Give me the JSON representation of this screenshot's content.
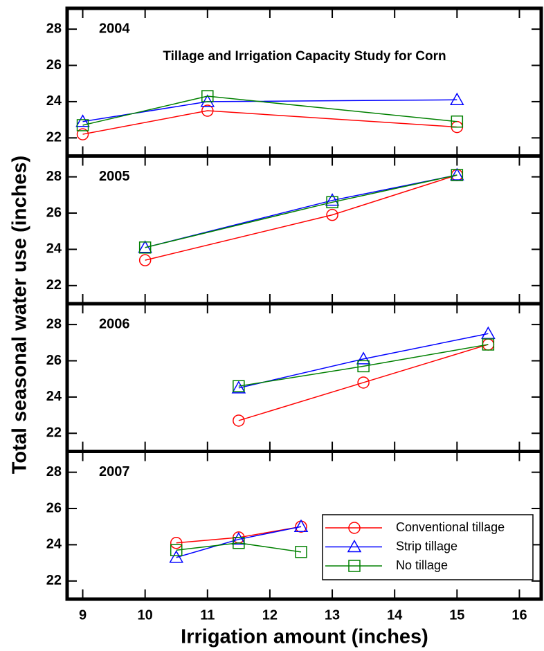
{
  "chart_data": [
    {
      "type": "line",
      "title": "Tillage and Irrigation Capacity Study for Corn",
      "annotation": "2004",
      "ylabel": "Total seasonal water use (inches)",
      "x": [
        9,
        11,
        15
      ],
      "xlim": [
        8.75,
        16.35
      ],
      "ylim": [
        21,
        29.15
      ],
      "yticks": [
        22,
        24,
        26,
        28
      ],
      "series": [
        {
          "color": "#ff0000",
          "marker": "circle",
          "values": [
            22.2,
            23.5,
            22.6
          ]
        },
        {
          "color": "#0000ff",
          "marker": "triangle",
          "values": [
            22.9,
            24.0,
            24.1
          ]
        },
        {
          "color": "#008000",
          "marker": "square",
          "values": [
            22.7,
            24.3,
            22.9
          ]
        }
      ]
    },
    {
      "type": "line",
      "annotation": "2005",
      "x": [
        10,
        13,
        15
      ],
      "xlim": [
        8.75,
        16.35
      ],
      "ylim": [
        21,
        29.15
      ],
      "yticks": [
        22,
        24,
        26,
        28
      ],
      "series": [
        {
          "color": "#ff0000",
          "marker": "circle",
          "values": [
            23.4,
            25.9,
            28.1
          ]
        },
        {
          "color": "#0000ff",
          "marker": "triangle",
          "values": [
            24.1,
            26.7,
            28.1
          ]
        },
        {
          "color": "#008000",
          "marker": "square",
          "values": [
            24.1,
            26.6,
            28.1
          ]
        }
      ]
    },
    {
      "type": "line",
      "annotation": "2006",
      "x": [
        11.5,
        13.5,
        15.5
      ],
      "xlim": [
        8.75,
        16.35
      ],
      "ylim": [
        21,
        29.15
      ],
      "yticks": [
        22,
        24,
        26,
        28
      ],
      "series": [
        {
          "color": "#ff0000",
          "marker": "circle",
          "values": [
            22.7,
            24.8,
            26.9
          ]
        },
        {
          "color": "#0000ff",
          "marker": "triangle",
          "values": [
            24.5,
            26.1,
            27.5
          ]
        },
        {
          "color": "#008000",
          "marker": "square",
          "values": [
            24.6,
            25.7,
            26.9
          ]
        }
      ]
    },
    {
      "type": "line",
      "annotation": "2007",
      "xlabel": "Irrigation amount (inches)",
      "x": [
        10.5,
        11.5,
        12.5
      ],
      "xlim": [
        8.75,
        16.35
      ],
      "ylim": [
        21,
        29.15
      ],
      "yticks": [
        22,
        24,
        26,
        28
      ],
      "xticks": [
        9,
        10,
        11,
        12,
        13,
        14,
        15,
        16
      ],
      "legend": "lower right",
      "series": [
        {
          "name": "Conventional tillage",
          "color": "#ff0000",
          "marker": "circle",
          "values": [
            24.1,
            24.4,
            25.0
          ]
        },
        {
          "name": "Strip tillage",
          "color": "#0000ff",
          "marker": "triangle",
          "values": [
            23.3,
            24.3,
            25.0
          ]
        },
        {
          "name": "No tillage",
          "color": "#008000",
          "marker": "square",
          "values": [
            23.7,
            24.1,
            23.6
          ]
        }
      ]
    }
  ]
}
